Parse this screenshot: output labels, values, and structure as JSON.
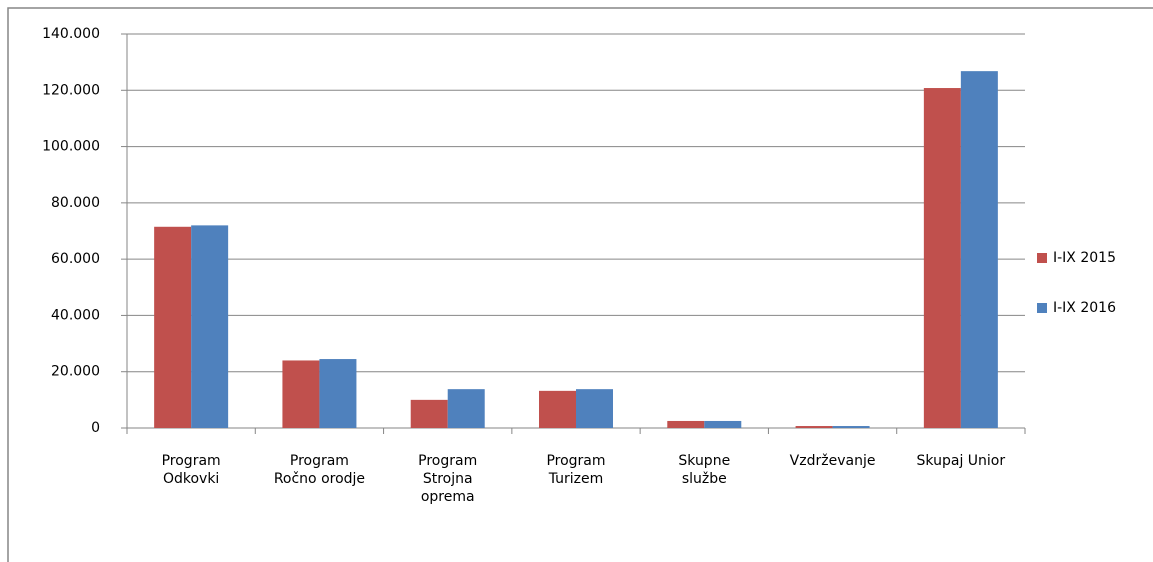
{
  "chart_data": {
    "type": "bar",
    "categories": [
      "Program\nOdkovki",
      "Program\nRočno orodje",
      "Program\nStrojna\noprema",
      "Program\nTurizem",
      "Skupne\nslužbe",
      "Vzdrževanje",
      "Skupaj Unior"
    ],
    "series": [
      {
        "name": "I-IX 2015",
        "color": "#c0504d",
        "values": [
          71500,
          24000,
          10000,
          13200,
          2500,
          700,
          120800
        ]
      },
      {
        "name": "I-IX 2016",
        "color": "#4f81bd",
        "values": [
          72000,
          24500,
          13800,
          13800,
          2500,
          700,
          126800
        ]
      }
    ],
    "ylim": [
      0,
      140000
    ],
    "yticks": [
      0,
      {
        "value": 20000,
        "label": "20.000"
      },
      {
        "value": 40000,
        "label": "40.000"
      },
      {
        "value": 60000,
        "label": "60.000"
      },
      {
        "value": 80000,
        "label": "80.000"
      },
      {
        "value": 100000,
        "label": "100.000"
      },
      {
        "value": 120000,
        "label": "120.000"
      },
      {
        "value": 140000,
        "label": "140.000"
      }
    ],
    "grid": true,
    "legend": "right"
  }
}
